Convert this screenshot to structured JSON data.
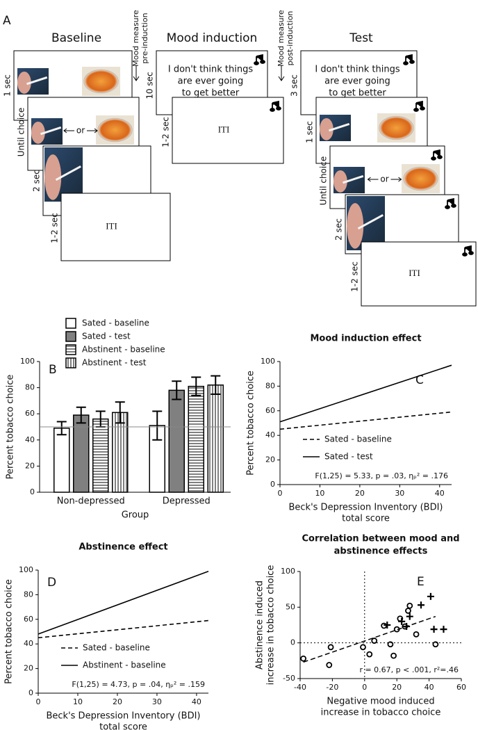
{
  "diagram": {
    "panel_label": "A",
    "phases": [
      {
        "title": "Baseline",
        "durations": [
          "1 sec",
          "Until choice",
          "2 sec",
          "1-2 sec"
        ],
        "choice_separator": "or",
        "iti": "ITI"
      },
      {
        "title": "Mood induction",
        "durations": [
          "10 sec",
          "1-2 sec"
        ],
        "statement": [
          "I don't think things",
          "are ever going",
          "to get better"
        ],
        "iti": "ITI"
      },
      {
        "title": "Test",
        "durations": [
          "3 sec",
          "1 sec",
          "Until choice",
          "2 sec",
          "1-2 sec"
        ],
        "statement": [
          "I don't think things",
          "are ever going",
          "to get better"
        ],
        "choice_separator": "or",
        "iti": "ITI"
      }
    ],
    "mood_measures": [
      [
        "Mood measure",
        "pre-induction"
      ],
      [
        "Mood measure",
        "post-induction"
      ]
    ]
  },
  "chart_data": [
    {
      "type": "bar",
      "panel_label": "B",
      "title": [],
      "ylabel": [
        "Percent tobacco choice"
      ],
      "xlabel": [
        "Group"
      ],
      "categories": [
        "Non-depressed",
        "Depressed"
      ],
      "series": [
        {
          "name": "Sated - baseline",
          "color": "#ffffff",
          "pattern": "none",
          "values": [
            49,
            51
          ],
          "errors": [
            5,
            11
          ]
        },
        {
          "name": "Sated - test",
          "color": "#808080",
          "pattern": "none",
          "values": [
            59,
            78
          ],
          "errors": [
            6,
            7
          ]
        },
        {
          "name": "Abstinent - baseline",
          "color": "#ffffff",
          "pattern": "hstripes",
          "values": [
            56,
            81
          ],
          "errors": [
            6,
            7
          ]
        },
        {
          "name": "Abstinent - test",
          "color": "#ffffff",
          "pattern": "vstripes",
          "values": [
            61,
            82
          ],
          "errors": [
            8,
            7
          ]
        }
      ],
      "ylim": [
        0,
        100
      ],
      "yticks": [
        0,
        20,
        40,
        60,
        80,
        100
      ],
      "hline": 50,
      "legend": "top"
    },
    {
      "type": "line",
      "panel_label": "C",
      "title": [
        "Mood induction effect"
      ],
      "ylabel": [
        "Percent tobacco choice"
      ],
      "xlabel": [
        "Beck's Depression Inventory (BDI)",
        "total score"
      ],
      "series": [
        {
          "name": "Sated - baseline",
          "color": "#000000",
          "dash": true,
          "x": [
            0,
            43
          ],
          "values": [
            45,
            59
          ]
        },
        {
          "name": "Sated - test",
          "color": "#000000",
          "dash": false,
          "x": [
            0,
            43
          ],
          "values": [
            51,
            97
          ]
        }
      ],
      "xlim": [
        0,
        43
      ],
      "xticks": [
        0,
        10,
        20,
        30,
        40
      ],
      "ylim": [
        0,
        100
      ],
      "yticks": [
        0,
        20,
        40,
        60,
        80,
        100
      ],
      "annotation": "F(1,25) = 5.33, p = .03, ηₚ² = .176",
      "legend": "center left"
    },
    {
      "type": "line",
      "panel_label": "D",
      "title": [
        "Abstinence effect"
      ],
      "ylabel": [
        "Percent tobacco choice"
      ],
      "xlabel": [
        "Beck's Depression Inventory (BDI)",
        "total score"
      ],
      "series": [
        {
          "name": "Sated - baseline",
          "color": "#000000",
          "dash": true,
          "x": [
            0,
            43
          ],
          "values": [
            45,
            59
          ]
        },
        {
          "name": "Abstinent - baseline",
          "color": "#000000",
          "dash": false,
          "x": [
            0,
            43
          ],
          "values": [
            48,
            99
          ]
        }
      ],
      "xlim": [
        0,
        43
      ],
      "xticks": [
        0,
        10,
        20,
        30,
        40
      ],
      "ylim": [
        0,
        100
      ],
      "yticks": [
        0,
        20,
        40,
        60,
        80,
        100
      ],
      "annotation": "F(1,25) = 4.73, p = .04, ηₚ² = .159",
      "legend": "center left"
    },
    {
      "type": "scatter",
      "panel_label": "E",
      "title": [
        "Correlation between mood and",
        "abstinence effects"
      ],
      "ylabel": [
        "Abstinence induced",
        "increase in tobacco choice"
      ],
      "xlabel": [
        "Negative mood induced",
        "increase in tobacco choice"
      ],
      "series": [
        {
          "marker": "circle",
          "color": "#000000",
          "x": [
            -38,
            -22,
            -21,
            -1,
            3,
            6,
            12,
            16,
            18,
            20,
            22,
            25,
            27,
            28,
            32,
            44
          ],
          "values": [
            -22,
            -31,
            -6,
            -6,
            -16,
            3,
            24,
            -2,
            -18,
            19,
            34,
            23,
            45,
            52,
            12,
            -2
          ]
        },
        {
          "marker": "plus",
          "color": "#000000",
          "x": [
            14,
            23,
            26,
            28,
            35,
            41,
            43,
            49
          ],
          "values": [
            25,
            30,
            23,
            37,
            53,
            65,
            19,
            19
          ]
        }
      ],
      "fit": {
        "x": [
          -38,
          44
        ],
        "y": [
          -27,
          37
        ]
      },
      "hline": 0,
      "vline": 0,
      "xlim": [
        -40,
        60
      ],
      "xticks": [
        -40,
        -20,
        0,
        20,
        40,
        60
      ],
      "ylim": [
        -50,
        100
      ],
      "yticks": [
        -50,
        0,
        50,
        100
      ],
      "annotation": "r = 0.67, p < .001, r²=.46"
    }
  ]
}
